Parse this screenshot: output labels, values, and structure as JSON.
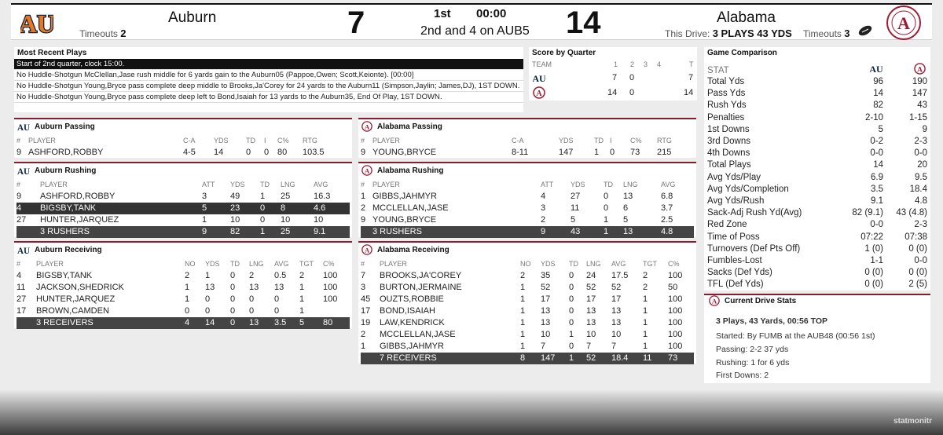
{
  "scoreboard": {
    "away": {
      "name": "Auburn",
      "score": "7",
      "timeouts_label": "Timeouts",
      "timeouts": "2"
    },
    "home": {
      "name": "Alabama",
      "score": "14",
      "timeouts_label": "Timeouts",
      "timeouts": "3"
    },
    "period": "1st",
    "clock": "00:00",
    "down_distance": "2nd and 4 on AUB5",
    "this_drive_label": "This Drive:",
    "this_drive": "3 PLAYS 43 YDS",
    "possession_icon": "football-icon"
  },
  "recent_plays": {
    "title": "Most Recent Plays",
    "items": [
      "Start of 2nd quarter, clock 15:00.",
      "No Huddle-Shotgun McClellan,Jase rush middle for 6 yards gain to the Auburn05 (Pappoe,Owen; Scott,Keionte). [00:00]",
      "No Huddle-Shotgun Young,Bryce pass complete deep middle to Brooks,Ja'Corey for 24 yards to the Auburn11 (Simpson,Jaylin; James,DJ), 1ST DOWN.",
      "No Huddle-Shotgun Young,Bryce pass complete deep left to Bond,Isaiah for 13 yards to the Auburn35, End Of Play, 1ST DOWN."
    ]
  },
  "score_by_quarter": {
    "title": "Score by Quarter",
    "headers": [
      "TEAM",
      "1",
      "2",
      "3",
      "4",
      "T"
    ],
    "rows": [
      {
        "team": "auburn-logo",
        "q1": "7",
        "q2": "0",
        "q3": "",
        "q4": "",
        "t": "7"
      },
      {
        "team": "alabama-logo",
        "q1": "14",
        "q2": "0",
        "q3": "",
        "q4": "",
        "t": "14"
      }
    ]
  },
  "comparison": {
    "title": "Game Comparison",
    "stat_label": "STAT",
    "rows": [
      [
        "Total Yds",
        "96",
        "190"
      ],
      [
        "Pass Yds",
        "14",
        "147"
      ],
      [
        "Rush Yds",
        "82",
        "43"
      ],
      [
        "Penalties",
        "2-10",
        "1-15"
      ],
      [
        "1st Downs",
        "5",
        "9"
      ],
      [
        "3rd Downs",
        "0-2",
        "2-3"
      ],
      [
        "4th Downs",
        "0-0",
        "0-0"
      ],
      [
        "Total Plays",
        "14",
        "20"
      ],
      [
        "Avg Yds/Play",
        "6.9",
        "9.5"
      ],
      [
        "Avg Yds/Completion",
        "3.5",
        "18.4"
      ],
      [
        "Avg Yds/Rush",
        "9.1",
        "4.8"
      ],
      [
        "Sack-Adj Rush Yd(Avg)",
        "82 (9.1)",
        "43 (4.8)"
      ],
      [
        "Red Zone",
        "0-0",
        "2-3"
      ],
      [
        "Time of Poss",
        "07:22",
        "07:38"
      ],
      [
        "Turnovers (Def Pts Off)",
        "1 (0)",
        "0 (0)"
      ],
      [
        "Fumbles-Lost",
        "1-1",
        "0-0"
      ],
      [
        "Sacks (Def Yds)",
        "0 (0)",
        "0 (0)"
      ],
      [
        "TFL (Def Yds)",
        "0 (0)",
        "2 (5)"
      ]
    ]
  },
  "drive": {
    "title": "Current Drive Stats",
    "headline": "3 Plays, 43 Yards, 00:56 TOP",
    "started": "Started: By FUMB at the AUB48 (00:56 1st)",
    "passing": "Passing: 2-2 37 yds",
    "rushing": "Rushing: 1 for 6 yds",
    "first_downs": "First Downs: 2"
  },
  "au_passing": {
    "title": "Auburn Passing",
    "headers": [
      "#",
      "PLAYER",
      "C-A",
      "YDS",
      "TD",
      "I",
      "C%",
      "RTG"
    ],
    "rows": [
      [
        "9",
        "ASHFORD,ROBBY",
        "4-5",
        "14",
        "0",
        "0",
        "80",
        "103.5"
      ]
    ]
  },
  "al_passing": {
    "title": "Alabama Passing",
    "headers": [
      "#",
      "PLAYER",
      "C-A",
      "YDS",
      "TD",
      "I",
      "C%",
      "RTG"
    ],
    "rows": [
      [
        "9",
        "YOUNG,BRYCE",
        "8-11",
        "147",
        "1",
        "0",
        "73",
        "215"
      ]
    ]
  },
  "au_rushing": {
    "title": "Auburn Rushing",
    "headers": [
      "#",
      "PLAYER",
      "ATT",
      "YDS",
      "TD",
      "LNG",
      "AVG"
    ],
    "rows": [
      [
        "9",
        "ASHFORD,ROBBY",
        "3",
        "49",
        "1",
        "25",
        "16.3"
      ],
      [
        "4",
        "BIGSBY,TANK",
        "5",
        "23",
        "0",
        "8",
        "4.6"
      ],
      [
        "27",
        "HUNTER,JARQUEZ",
        "1",
        "10",
        "0",
        "10",
        "10"
      ],
      [
        "",
        "3 RUSHERS",
        "9",
        "82",
        "1",
        "25",
        "9.1"
      ]
    ]
  },
  "al_rushing": {
    "title": "Alabama Rushing",
    "headers": [
      "#",
      "PLAYER",
      "ATT",
      "YDS",
      "TD",
      "LNG",
      "AVG"
    ],
    "rows": [
      [
        "1",
        "GIBBS,JAHMYR",
        "4",
        "27",
        "0",
        "13",
        "6.8"
      ],
      [
        "2",
        "MCCLELLAN,JASE",
        "3",
        "11",
        "0",
        "6",
        "3.7"
      ],
      [
        "9",
        "YOUNG,BRYCE",
        "2",
        "5",
        "1",
        "5",
        "2.5"
      ],
      [
        "",
        "3 RUSHERS",
        "9",
        "43",
        "1",
        "13",
        "4.8"
      ]
    ]
  },
  "au_receiving": {
    "title": "Auburn Receiving",
    "headers": [
      "#",
      "PLAYER",
      "NO",
      "YDS",
      "TD",
      "LNG",
      "AVG",
      "TGT",
      "C%"
    ],
    "rows": [
      [
        "4",
        "BIGSBY,TANK",
        "2",
        "1",
        "0",
        "2",
        "0.5",
        "2",
        "100"
      ],
      [
        "11",
        "JACKSON,SHEDRICK",
        "1",
        "13",
        "0",
        "13",
        "13",
        "1",
        "100"
      ],
      [
        "27",
        "HUNTER,JARQUEZ",
        "1",
        "0",
        "0",
        "0",
        "0",
        "1",
        "100"
      ],
      [
        "17",
        "BROWN,CAMDEN",
        "0",
        "0",
        "0",
        "0",
        "0",
        "1",
        ""
      ],
      [
        "",
        "3 RECEIVERS",
        "4",
        "14",
        "0",
        "13",
        "3.5",
        "5",
        "80"
      ]
    ]
  },
  "al_receiving": {
    "title": "Alabama Receiving",
    "headers": [
      "#",
      "PLAYER",
      "NO",
      "YDS",
      "TD",
      "LNG",
      "AVG",
      "TGT",
      "C%"
    ],
    "rows": [
      [
        "7",
        "BROOKS,JA'COREY",
        "2",
        "35",
        "0",
        "24",
        "17.5",
        "2",
        "100"
      ],
      [
        "3",
        "BURTON,JERMAINE",
        "1",
        "52",
        "0",
        "52",
        "52",
        "2",
        "50"
      ],
      [
        "45",
        "OUZTS,ROBBIE",
        "1",
        "17",
        "0",
        "17",
        "17",
        "1",
        "100"
      ],
      [
        "17",
        "BOND,ISAIAH",
        "1",
        "13",
        "0",
        "13",
        "13",
        "1",
        "100"
      ],
      [
        "19",
        "LAW,KENDRICK",
        "1",
        "13",
        "0",
        "13",
        "13",
        "1",
        "100"
      ],
      [
        "2",
        "MCCLELLAN,JASE",
        "1",
        "10",
        "1",
        "10",
        "10",
        "1",
        "100"
      ],
      [
        "1",
        "GIBBS,JAHMYR",
        "1",
        "7",
        "0",
        "7",
        "7",
        "1",
        "100"
      ],
      [
        "",
        "7 RECEIVERS",
        "8",
        "147",
        "1",
        "52",
        "18.4",
        "11",
        "73"
      ]
    ]
  },
  "brand": "statmonitr",
  "colors": {
    "auburn_navy": "#0c2340",
    "auburn_orange": "#e87722",
    "alabama_crimson": "#9e1b32",
    "accent_border": "#8b1a2f"
  }
}
